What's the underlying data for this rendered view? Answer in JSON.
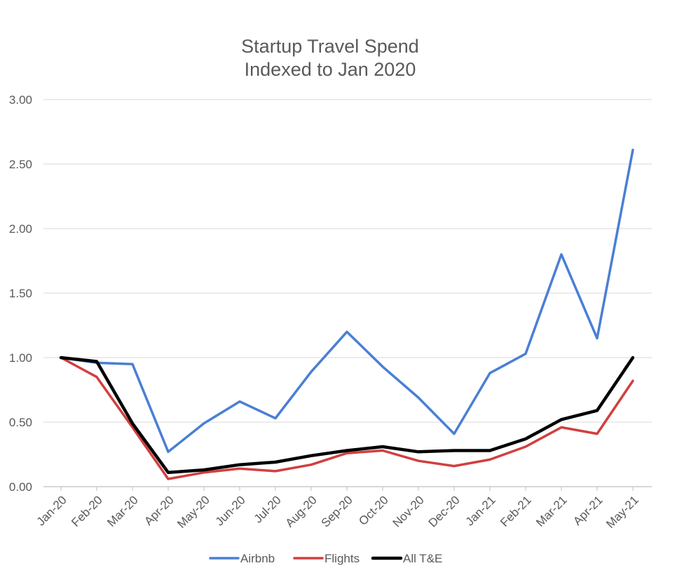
{
  "chart_data": {
    "type": "line",
    "title": [
      "Startup Travel Spend",
      "Indexed to Jan 2020"
    ],
    "categories": [
      "Jan-20",
      "Feb-20",
      "Mar-20",
      "Apr-20",
      "May-20",
      "Jun-20",
      "Jul-20",
      "Aug-20",
      "Sep-20",
      "Oct-20",
      "Nov-20",
      "Dec-20",
      "Jan-21",
      "Feb-21",
      "Mar-21",
      "Apr-21",
      "May-21"
    ],
    "y_ticks": [
      "0.00",
      "0.50",
      "1.00",
      "1.50",
      "2.00",
      "2.50",
      "3.00"
    ],
    "ylim": [
      0,
      3
    ],
    "grid": true,
    "legend_position": "bottom",
    "series": [
      {
        "name": "Airbnb",
        "color": "#4a7fd4",
        "width": 3.5,
        "values": [
          1.0,
          0.96,
          0.95,
          0.27,
          0.49,
          0.66,
          0.53,
          0.89,
          1.2,
          0.93,
          0.69,
          0.41,
          0.88,
          1.03,
          1.8,
          1.15,
          2.61
        ]
      },
      {
        "name": "Flights",
        "color": "#d13f3f",
        "width": 3.5,
        "values": [
          1.0,
          0.85,
          0.46,
          0.06,
          0.11,
          0.14,
          0.12,
          0.17,
          0.26,
          0.28,
          0.2,
          0.16,
          0.21,
          0.31,
          0.46,
          0.41,
          0.82
        ]
      },
      {
        "name": "All T&E",
        "color": "#000000",
        "width": 4.5,
        "values": [
          1.0,
          0.97,
          0.49,
          0.11,
          0.13,
          0.17,
          0.19,
          0.24,
          0.28,
          0.31,
          0.27,
          0.28,
          0.28,
          0.37,
          0.52,
          0.59,
          1.0
        ]
      }
    ]
  }
}
